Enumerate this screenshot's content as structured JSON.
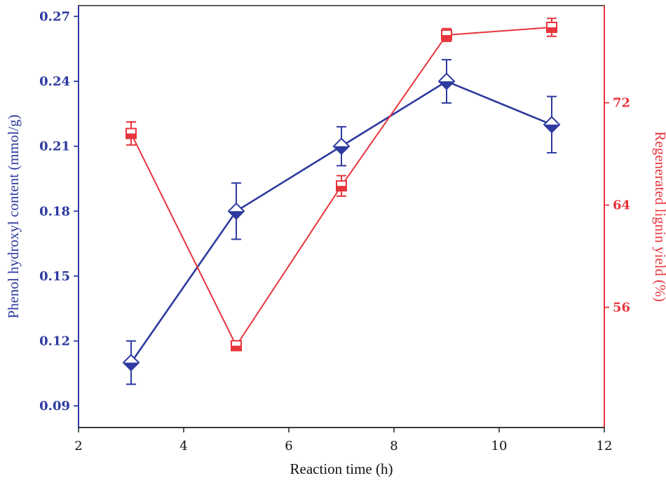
{
  "chart_data": {
    "type": "line",
    "title": "",
    "xlabel": "Reaction time (h)",
    "x": [
      3,
      5,
      7,
      9,
      11
    ],
    "xlim": [
      2,
      12
    ],
    "xticks": [
      2,
      4,
      6,
      8,
      10,
      12
    ],
    "xtick_labels": [
      "2",
      "4",
      "6",
      "8",
      "10",
      "12"
    ],
    "grid": false,
    "left_axis": {
      "label": "Phenol hydroxyl content (mmol/g)",
      "color": "#2e3a9f",
      "ylim": [
        0.08,
        0.275
      ],
      "ticks": [
        0.09,
        0.12,
        0.15,
        0.18,
        0.21,
        0.24,
        0.27
      ],
      "tick_labels": [
        "0.09",
        "0.12",
        "0.15",
        "0.18",
        "0.21",
        "0.24",
        "0.27"
      ]
    },
    "right_axis": {
      "label": "Regenerated lignin yield (%)",
      "color": "#e8343c",
      "ylim": [
        46.6,
        79.6
      ],
      "ticks": [
        56,
        64,
        72
      ],
      "tick_labels": [
        "56",
        "64",
        "72"
      ]
    },
    "series": [
      {
        "name": "Phenol hydroxyl content",
        "axis": "left",
        "color": "#2e3a9f",
        "marker": "half-filled diamond",
        "values": [
          0.11,
          0.18,
          0.21,
          0.24,
          0.22
        ],
        "errors": [
          0.01,
          0.013,
          0.009,
          0.01,
          0.013
        ]
      },
      {
        "name": "Regenerated lignin yield",
        "axis": "right",
        "color": "#e8343c",
        "marker": "half-filled square",
        "values": [
          69.6,
          53.0,
          65.5,
          77.3,
          77.9
        ],
        "errors": [
          0.9,
          0.35,
          0.8,
          0.5,
          0.7
        ]
      }
    ]
  }
}
